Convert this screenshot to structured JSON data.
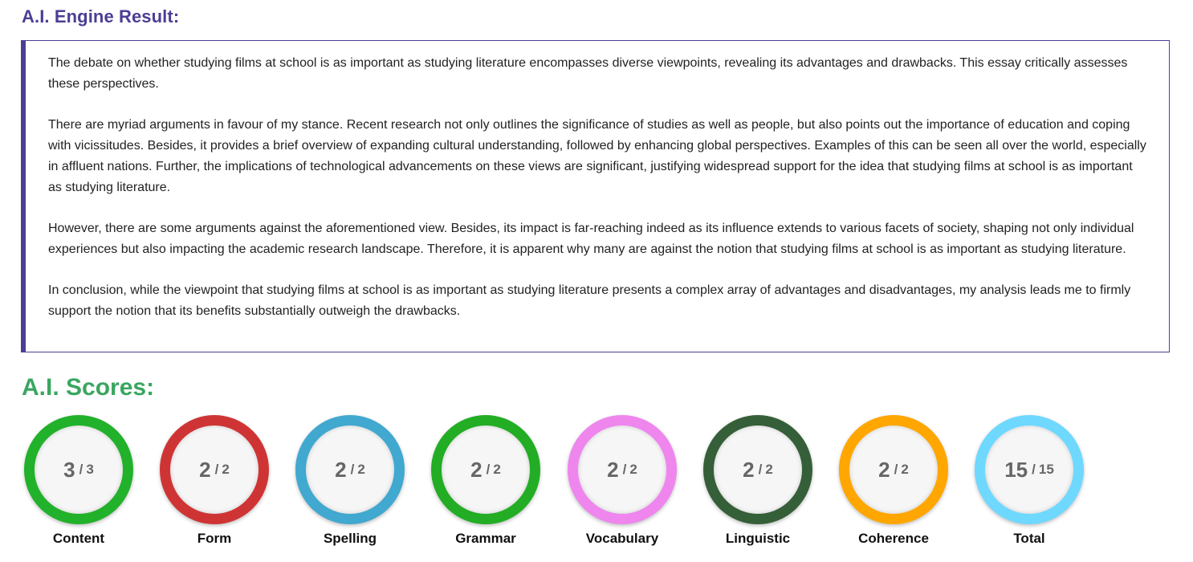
{
  "engine_title": "A.I. Engine Result:",
  "essay": {
    "paragraphs": [
      "The debate on whether studying films at school is as important as studying literature encompasses diverse viewpoints, revealing its advantages and drawbacks. This essay critically assesses these perspectives.",
      "There are myriad arguments in favour of my stance. Recent research not only outlines the significance of studies as well as people, but also points out the importance of education and coping with vicissitudes. Besides, it provides a brief overview of expanding cultural understanding, followed by enhancing global perspectives. Examples of this can be seen all over the world, especially in affluent nations. Further, the implications of technological advancements on these views are significant, justifying widespread support for the idea that studying films at school is as important as studying literature.",
      "However, there are some arguments against the aforementioned view. Besides, its impact is far-reaching indeed as its influence extends to various facets of society, shaping not only individual experiences but also impacting the academic research landscape. Therefore, it is apparent why many are against the notion that studying films at school is as important as studying literature.",
      "In conclusion, while the viewpoint that studying films at school is as important as studying literature presents a complex array of advantages and disadvantages, my analysis leads me to firmly support the notion that its benefits substantially outweigh the drawbacks."
    ]
  },
  "scores_title": "A.I. Scores:",
  "scores": [
    {
      "label": "Content",
      "value": "3",
      "sep": "/",
      "max": "3",
      "color": "#22b12a"
    },
    {
      "label": "Form",
      "value": "2",
      "sep": "/",
      "max": "2",
      "color": "#cf3434"
    },
    {
      "label": "Spelling",
      "value": "2",
      "sep": "/",
      "max": "2",
      "color": "#41a8d0"
    },
    {
      "label": "Grammar",
      "value": "2",
      "sep": "/",
      "max": "2",
      "color": "#22ad24"
    },
    {
      "label": "Vocabulary",
      "value": "2",
      "sep": "/",
      "max": "2",
      "color": "#ee86ee"
    },
    {
      "label": "Linguistic",
      "value": "2",
      "sep": "/",
      "max": "2",
      "color": "#355f38"
    },
    {
      "label": "Coherence",
      "value": "2",
      "sep": "/",
      "max": "2",
      "color": "#ffa600"
    },
    {
      "label": "Total",
      "value": "15",
      "sep": "/",
      "max": "15",
      "color": "#6fd8ff"
    }
  ]
}
